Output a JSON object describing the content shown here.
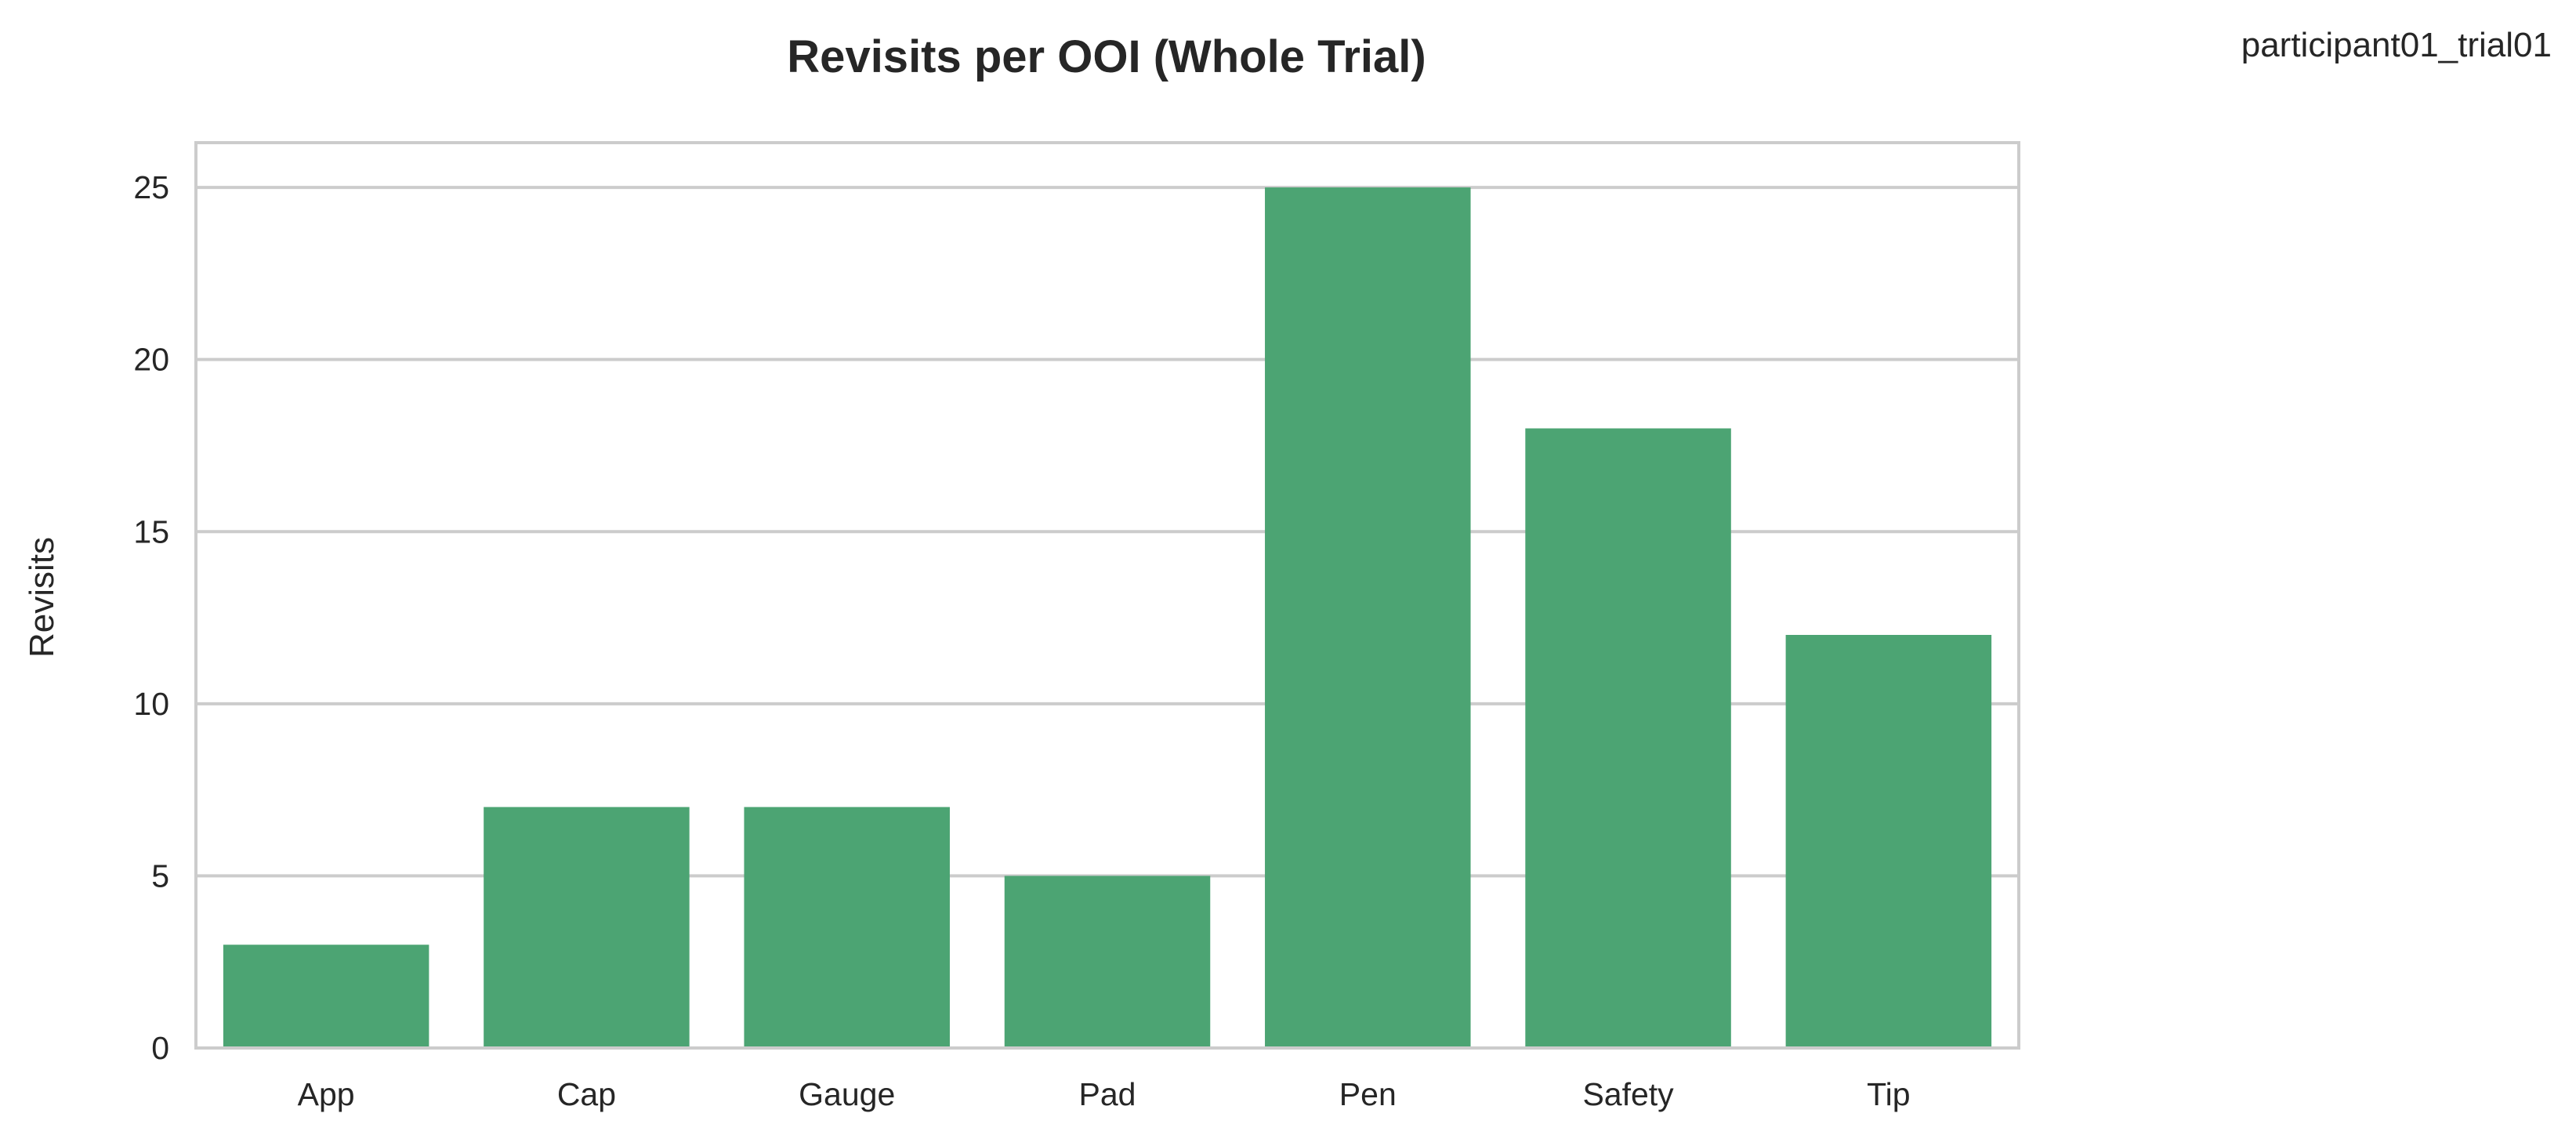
{
  "corner_label": "participant01_trial01",
  "chart_data": {
    "type": "bar",
    "title": "Revisits per OOI (Whole Trial)",
    "xlabel": "",
    "ylabel": "Revisits",
    "categories": [
      "App",
      "Cap",
      "Gauge",
      "Pad",
      "Pen",
      "Safety",
      "Tip"
    ],
    "values": [
      3,
      7,
      7,
      5,
      25,
      18,
      12
    ],
    "ylim": [
      0,
      26.3
    ],
    "yticks": [
      0,
      5,
      10,
      15,
      20,
      25
    ],
    "grid": true,
    "legend": "none",
    "bar_color": "#4ca473",
    "grid_color": "#cccccc"
  }
}
